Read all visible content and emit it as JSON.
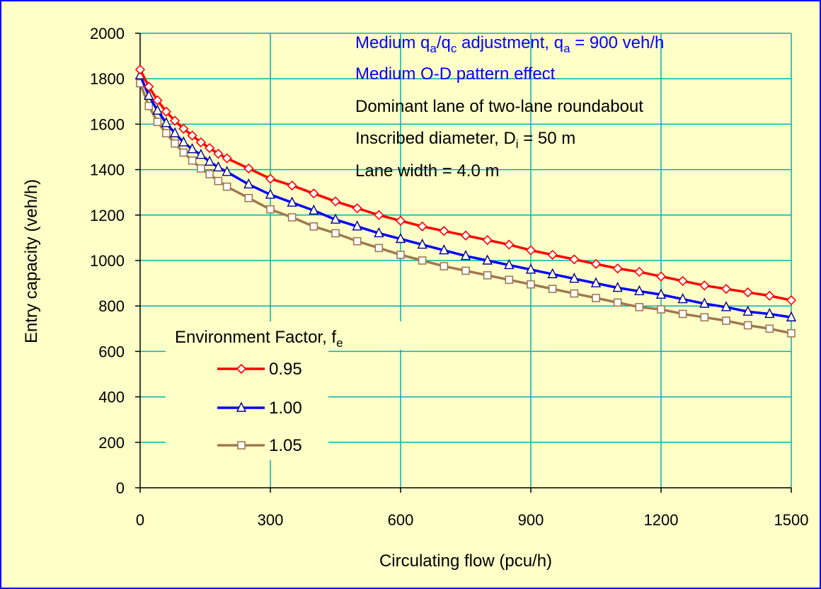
{
  "chart_data": {
    "type": "line",
    "xlabel": "Circulating flow (pcu/h)",
    "ylabel": "Entry capacity (veh/h)",
    "xlim": [
      0,
      1500
    ],
    "ylim": [
      0,
      2000
    ],
    "x_ticks": [
      0,
      300,
      600,
      900,
      1200,
      1500
    ],
    "y_ticks": [
      0,
      200,
      400,
      600,
      800,
      1000,
      1200,
      1400,
      1600,
      1800,
      2000
    ],
    "grid": true,
    "annotations": [
      {
        "parts": [
          [
            "Medium q",
            ""
          ],
          [
            "a",
            "sub"
          ],
          [
            "/q",
            ""
          ],
          [
            "c",
            "sub"
          ],
          [
            " adjustment, q",
            ""
          ],
          [
            "a",
            "sub"
          ],
          [
            " = 900 veh/h",
            ""
          ]
        ],
        "color": "#0000ff"
      },
      {
        "parts": [
          [
            "Medium O-D pattern effect",
            ""
          ]
        ],
        "color": "#0000ff"
      },
      {
        "parts": [
          [
            "Dominant lane of two-lane roundabout",
            ""
          ]
        ],
        "color": "#000000"
      },
      {
        "parts": [
          [
            "Inscribed diameter, D",
            ""
          ],
          [
            "i",
            "sub"
          ],
          [
            " = 50 m",
            ""
          ]
        ],
        "color": "#000000"
      },
      {
        "parts": [
          [
            "Lane width = 4.0 m",
            ""
          ]
        ],
        "color": "#000000"
      }
    ],
    "legend": {
      "title_parts": [
        [
          "Environment Factor, f",
          ""
        ],
        [
          "e",
          "sub"
        ]
      ],
      "position": "bottom-left"
    },
    "series": [
      {
        "name": "0.95",
        "color": "#ff0000",
        "marker": "diamond",
        "x": [
          0,
          20,
          40,
          60,
          80,
          100,
          120,
          140,
          160,
          180,
          200,
          250,
          300,
          350,
          400,
          450,
          500,
          550,
          600,
          650,
          700,
          750,
          800,
          850,
          900,
          950,
          1000,
          1050,
          1100,
          1150,
          1200,
          1250,
          1300,
          1350,
          1400,
          1450,
          1500
        ],
        "y": [
          1840,
          1765,
          1705,
          1655,
          1615,
          1580,
          1550,
          1520,
          1495,
          1470,
          1450,
          1405,
          1360,
          1330,
          1295,
          1260,
          1230,
          1200,
          1175,
          1150,
          1130,
          1110,
          1090,
          1070,
          1045,
          1025,
          1005,
          985,
          965,
          950,
          930,
          910,
          890,
          875,
          860,
          845,
          825
        ]
      },
      {
        "name": "1.00",
        "color": "#0000ff",
        "marker": "triangle",
        "x": [
          0,
          20,
          40,
          60,
          80,
          100,
          120,
          140,
          160,
          180,
          200,
          250,
          300,
          350,
          400,
          450,
          500,
          550,
          600,
          650,
          700,
          750,
          800,
          850,
          900,
          950,
          1000,
          1050,
          1100,
          1150,
          1200,
          1250,
          1300,
          1350,
          1400,
          1450,
          1500
        ],
        "y": [
          1815,
          1725,
          1660,
          1605,
          1560,
          1520,
          1490,
          1465,
          1435,
          1410,
          1390,
          1335,
          1290,
          1255,
          1220,
          1180,
          1150,
          1120,
          1095,
          1070,
          1045,
          1020,
          1000,
          980,
          960,
          940,
          920,
          900,
          880,
          865,
          850,
          830,
          810,
          795,
          775,
          765,
          750
        ]
      },
      {
        "name": "1.05",
        "color": "#a07850",
        "marker": "square",
        "x": [
          0,
          20,
          40,
          60,
          80,
          100,
          120,
          140,
          160,
          180,
          200,
          250,
          300,
          350,
          400,
          450,
          500,
          550,
          600,
          650,
          700,
          750,
          800,
          850,
          900,
          950,
          1000,
          1050,
          1100,
          1150,
          1200,
          1250,
          1300,
          1350,
          1400,
          1450,
          1500
        ],
        "y": [
          1780,
          1680,
          1610,
          1560,
          1515,
          1475,
          1440,
          1405,
          1380,
          1350,
          1325,
          1275,
          1225,
          1190,
          1150,
          1120,
          1085,
          1055,
          1025,
          1000,
          975,
          955,
          935,
          915,
          895,
          875,
          855,
          835,
          815,
          795,
          785,
          765,
          750,
          735,
          715,
          700,
          680
        ]
      }
    ]
  }
}
